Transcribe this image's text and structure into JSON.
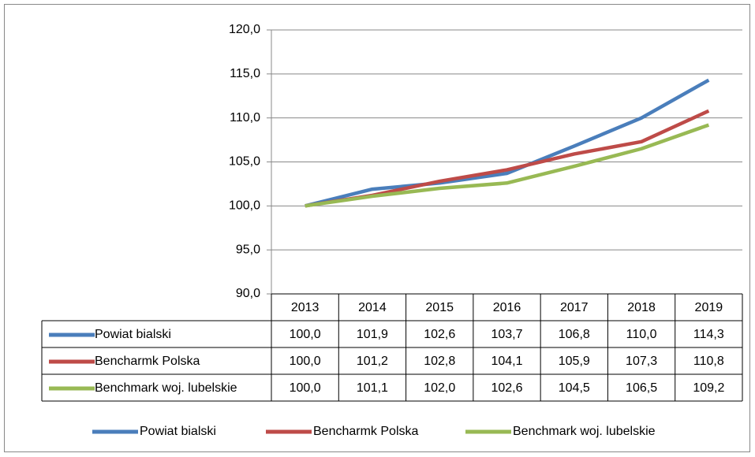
{
  "chart_data": {
    "type": "line",
    "categories": [
      "2013",
      "2014",
      "2015",
      "2016",
      "2017",
      "2018",
      "2019"
    ],
    "series": [
      {
        "name": "Powiat bialski",
        "color": "#4a7ebb",
        "values": [
          100.0,
          101.9,
          102.6,
          103.7,
          106.8,
          110.0,
          114.3
        ],
        "value_labels": [
          "100,0",
          "101,9",
          "102,6",
          "103,7",
          "106,8",
          "110,0",
          "114,3"
        ]
      },
      {
        "name": "Bencharmk Polska",
        "color": "#be4b48",
        "values": [
          100.0,
          101.2,
          102.8,
          104.1,
          105.9,
          107.3,
          110.8
        ],
        "value_labels": [
          "100,0",
          "101,2",
          "102,8",
          "104,1",
          "105,9",
          "107,3",
          "110,8"
        ]
      },
      {
        "name": "Benchmark woj. lubelskie",
        "color": "#98b954",
        "values": [
          100.0,
          101.1,
          102.0,
          102.6,
          104.5,
          106.5,
          109.2
        ],
        "value_labels": [
          "100,0",
          "101,1",
          "102,0",
          "102,6",
          "104,5",
          "106,5",
          "109,2"
        ]
      }
    ],
    "ylim": [
      90,
      120
    ],
    "yticks": [
      {
        "value": 90,
        "label": "90,0"
      },
      {
        "value": 95,
        "label": "95,0"
      },
      {
        "value": 100,
        "label": "100,0"
      },
      {
        "value": 105,
        "label": "105,0"
      },
      {
        "value": 110,
        "label": "110,0"
      },
      {
        "value": 115,
        "label": "115,0"
      },
      {
        "value": 120,
        "label": "120,0"
      }
    ],
    "grid": true,
    "legend": "bottom"
  }
}
